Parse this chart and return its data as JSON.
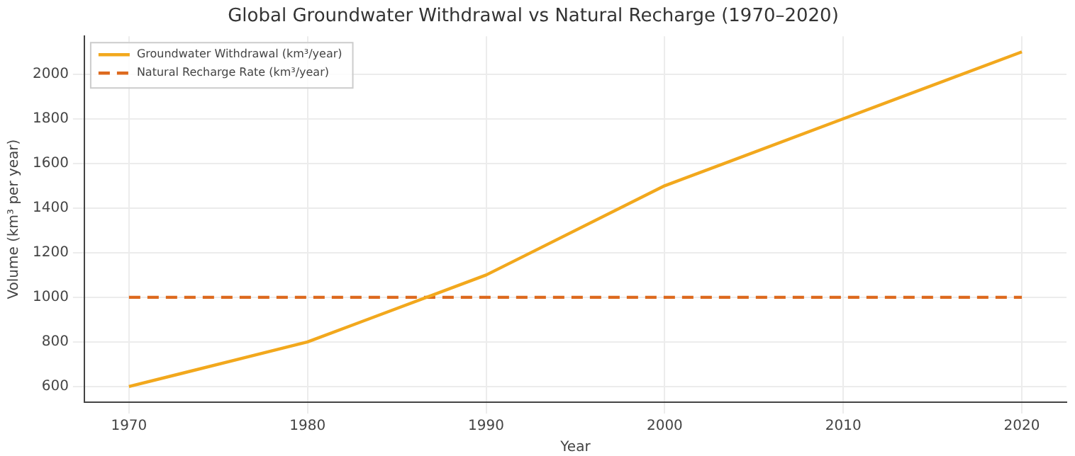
{
  "chart_data": {
    "type": "line",
    "title": "Global Groundwater Withdrawal vs Natural Recharge (1970–2020)",
    "xlabel": "Year",
    "ylabel": "Volume (km³ per year)",
    "x": [
      1970,
      1980,
      1990,
      2000,
      2010,
      2020
    ],
    "series": [
      {
        "name": "Groundwater Withdrawal (km³/year)",
        "color": "#f2a81d",
        "values": [
          600,
          800,
          1100,
          1500,
          1800,
          2100
        ],
        "line_style": "solid"
      },
      {
        "name": "Natural Recharge Rate (km³/year)",
        "color": "#dd6a1f",
        "values": [
          1000,
          1000,
          1000,
          1000,
          1000,
          1000
        ],
        "line_style": "dashed"
      }
    ],
    "xlim": [
      1967.5,
      2022.5
    ],
    "xticks": [
      1970,
      1980,
      1990,
      2000,
      2010,
      2020
    ],
    "ylim": [
      530,
      2170
    ],
    "yticks": [
      600,
      800,
      1000,
      1200,
      1400,
      1600,
      1800,
      2000
    ],
    "grid": true,
    "legend": "top left",
    "marker": "none"
  }
}
